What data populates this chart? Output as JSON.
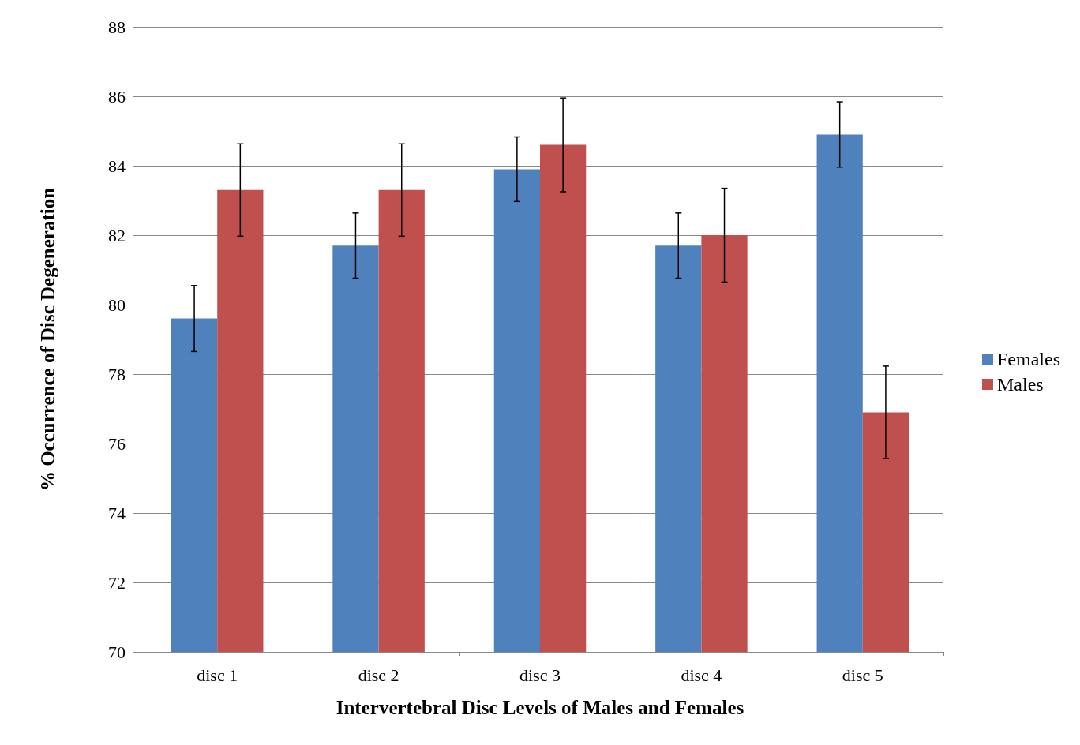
{
  "chart_data": {
    "type": "bar",
    "xlabel": "Intervertebral Disc Levels of Males and Females",
    "ylabel": "% Occurrence of Disc Degeneration",
    "categories": [
      "disc 1",
      "disc 2",
      "disc 3",
      "disc 4",
      "disc 5"
    ],
    "series": [
      {
        "name": "Females",
        "color": "#4f81bd",
        "values": [
          79.6,
          81.7,
          83.9,
          81.7,
          84.9
        ],
        "errors": [
          0.95,
          0.94,
          0.93,
          0.94,
          0.94
        ]
      },
      {
        "name": "Males",
        "color": "#c0504d",
        "values": [
          83.3,
          83.3,
          84.6,
          82.0,
          76.9
        ],
        "errors": [
          1.33,
          1.33,
          1.35,
          1.35,
          1.33
        ]
      }
    ],
    "ylim": [
      70,
      88
    ],
    "yticks": [
      70,
      72,
      74,
      76,
      78,
      80,
      82,
      84,
      86,
      88
    ],
    "grid": "y",
    "legend": "right"
  }
}
